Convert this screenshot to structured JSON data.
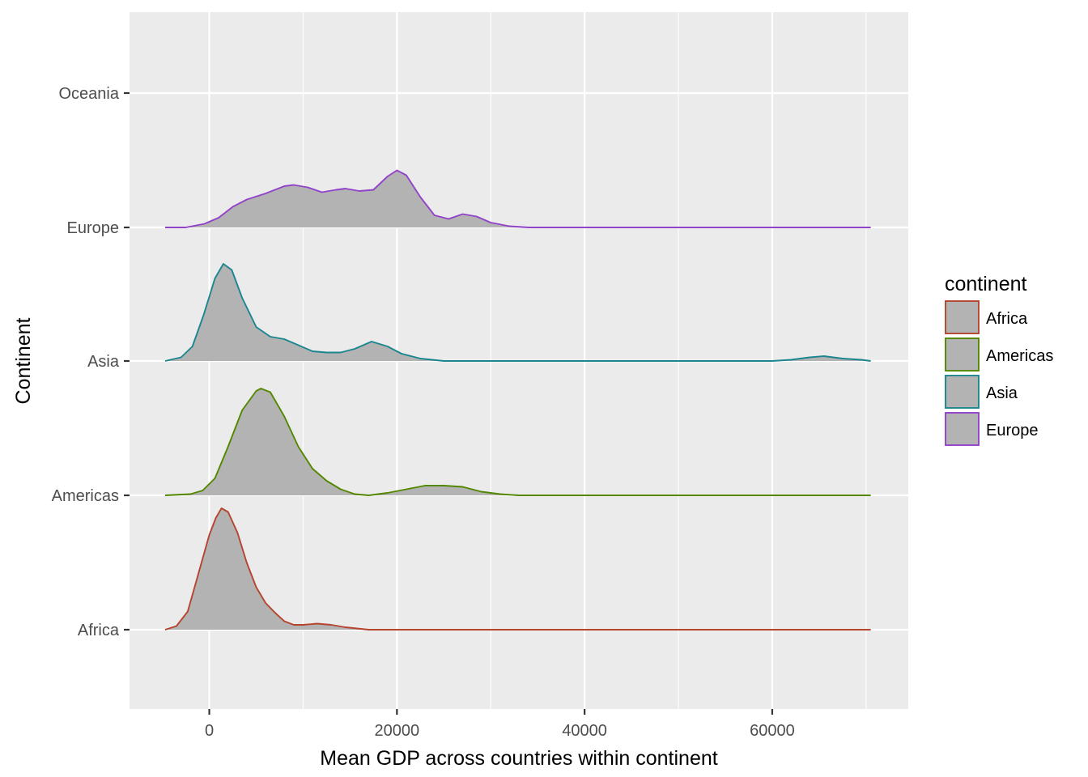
{
  "chart_data": {
    "type": "ridgeline",
    "title": "",
    "xlabel": "Mean GDP across countries within continent",
    "ylabel": "Continent",
    "xlim": [
      -8500,
      74500
    ],
    "x_ticks": [
      0,
      20000,
      40000,
      60000
    ],
    "x_tick_labels": [
      "0",
      "20000",
      "40000",
      "60000"
    ],
    "categories": [
      "Africa",
      "Americas",
      "Asia",
      "Europe",
      "Oceania"
    ],
    "grid": true,
    "fill_color": "#b3b3b3",
    "legend": {
      "title": "continent",
      "position": "right",
      "entries": [
        "Africa",
        "Americas",
        "Asia",
        "Europe"
      ]
    },
    "series": [
      {
        "name": "Africa",
        "color": "#b5442e",
        "points": [
          [
            -4700,
            0.0
          ],
          [
            -3500,
            0.03
          ],
          [
            -2300,
            0.15
          ],
          [
            -1200,
            0.45
          ],
          [
            0,
            0.78
          ],
          [
            700,
            0.92
          ],
          [
            1300,
            1.0
          ],
          [
            2000,
            0.97
          ],
          [
            3000,
            0.8
          ],
          [
            4000,
            0.55
          ],
          [
            5000,
            0.35
          ],
          [
            6000,
            0.22
          ],
          [
            7000,
            0.14
          ],
          [
            8000,
            0.07
          ],
          [
            9000,
            0.04
          ],
          [
            10000,
            0.04
          ],
          [
            11500,
            0.05
          ],
          [
            13000,
            0.04
          ],
          [
            14500,
            0.02
          ],
          [
            17000,
            0.0
          ],
          [
            70500,
            0.0
          ]
        ]
      },
      {
        "name": "Americas",
        "color": "#548700",
        "points": [
          [
            -4700,
            0.0
          ],
          [
            -2000,
            0.01
          ],
          [
            -700,
            0.04
          ],
          [
            600,
            0.14
          ],
          [
            2000,
            0.4
          ],
          [
            3500,
            0.7
          ],
          [
            5000,
            0.86
          ],
          [
            5500,
            0.88
          ],
          [
            6500,
            0.85
          ],
          [
            8000,
            0.65
          ],
          [
            9500,
            0.4
          ],
          [
            11000,
            0.22
          ],
          [
            12500,
            0.12
          ],
          [
            14000,
            0.05
          ],
          [
            15500,
            0.01
          ],
          [
            17000,
            0.0
          ],
          [
            19000,
            0.02
          ],
          [
            21000,
            0.05
          ],
          [
            23000,
            0.08
          ],
          [
            25000,
            0.08
          ],
          [
            27000,
            0.07
          ],
          [
            29000,
            0.03
          ],
          [
            31000,
            0.01
          ],
          [
            33000,
            0.0
          ],
          [
            70500,
            0.0
          ]
        ]
      },
      {
        "name": "Asia",
        "color": "#1c868f",
        "points": [
          [
            -4700,
            0.0
          ],
          [
            -3000,
            0.03
          ],
          [
            -1800,
            0.12
          ],
          [
            -600,
            0.38
          ],
          [
            600,
            0.68
          ],
          [
            1500,
            0.8
          ],
          [
            2400,
            0.75
          ],
          [
            3500,
            0.52
          ],
          [
            5000,
            0.28
          ],
          [
            6500,
            0.2
          ],
          [
            8000,
            0.18
          ],
          [
            9500,
            0.13
          ],
          [
            11000,
            0.08
          ],
          [
            12500,
            0.07
          ],
          [
            14000,
            0.07
          ],
          [
            15500,
            0.1
          ],
          [
            17300,
            0.16
          ],
          [
            19000,
            0.12
          ],
          [
            20500,
            0.06
          ],
          [
            22500,
            0.02
          ],
          [
            25000,
            0.0
          ],
          [
            60000,
            0.0
          ],
          [
            62000,
            0.01
          ],
          [
            64000,
            0.03
          ],
          [
            65500,
            0.04
          ],
          [
            67500,
            0.02
          ],
          [
            69500,
            0.01
          ],
          [
            70500,
            0.0
          ]
        ]
      },
      {
        "name": "Europe",
        "color": "#9143c9",
        "points": [
          [
            -4700,
            0.0
          ],
          [
            -2500,
            0.0
          ],
          [
            -500,
            0.03
          ],
          [
            1000,
            0.08
          ],
          [
            2500,
            0.17
          ],
          [
            4000,
            0.23
          ],
          [
            6000,
            0.28
          ],
          [
            8000,
            0.34
          ],
          [
            9000,
            0.35
          ],
          [
            10500,
            0.33
          ],
          [
            12000,
            0.29
          ],
          [
            13500,
            0.31
          ],
          [
            14500,
            0.32
          ],
          [
            16000,
            0.3
          ],
          [
            17500,
            0.31
          ],
          [
            19000,
            0.42
          ],
          [
            20000,
            0.47
          ],
          [
            21000,
            0.43
          ],
          [
            22500,
            0.25
          ],
          [
            24000,
            0.1
          ],
          [
            25500,
            0.07
          ],
          [
            27000,
            0.11
          ],
          [
            28500,
            0.09
          ],
          [
            30000,
            0.04
          ],
          [
            32000,
            0.01
          ],
          [
            34000,
            0.0
          ],
          [
            70500,
            0.0
          ]
        ]
      }
    ]
  }
}
